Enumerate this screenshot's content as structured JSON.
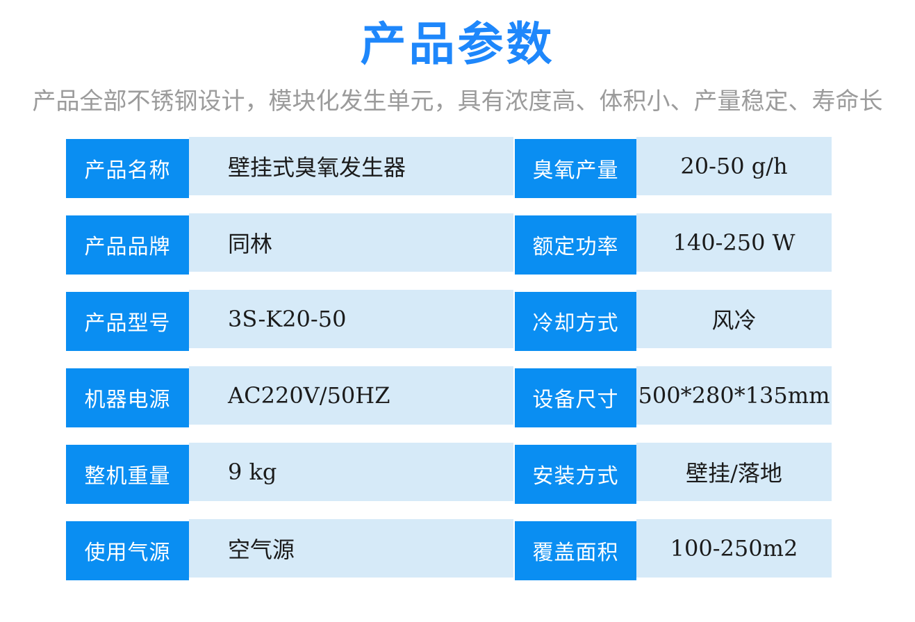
{
  "page": {
    "title": "产品参数",
    "subtitle": "产品全部不锈钢设计，模块化发生单元，具有浓度高、体积小、产量稳定、寿命长"
  },
  "colors": {
    "title_blue": "#1e87fb",
    "label_blue": "#0a8ef2",
    "value_light_blue": "#d6eaf8",
    "subtitle_gray": "#9b9b9b",
    "value_text": "#1b1b1b"
  },
  "spec_table": {
    "rows": [
      {
        "left": {
          "label": "产品名称",
          "value": "壁挂式臭氧发生器"
        },
        "right": {
          "label": "臭氧产量",
          "value": "20-50 g/h"
        }
      },
      {
        "left": {
          "label": "产品品牌",
          "value": "同林"
        },
        "right": {
          "label": "额定功率",
          "value": "140-250 W"
        }
      },
      {
        "left": {
          "label": "产品型号",
          "value": "3S-K20-50"
        },
        "right": {
          "label": "冷却方式",
          "value": "风冷"
        }
      },
      {
        "left": {
          "label": "机器电源",
          "value": "AC220V/50HZ"
        },
        "right": {
          "label": "设备尺寸",
          "value": "500*280*135mm"
        }
      },
      {
        "left": {
          "label": "整机重量",
          "value": "9 kg"
        },
        "right": {
          "label": "安装方式",
          "value": "壁挂/落地"
        }
      },
      {
        "left": {
          "label": "使用气源",
          "value": "空气源"
        },
        "right": {
          "label": "覆盖面积",
          "value": "100-250m2"
        }
      }
    ]
  }
}
